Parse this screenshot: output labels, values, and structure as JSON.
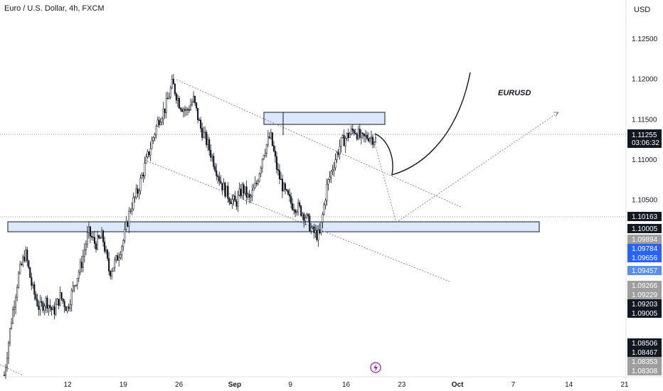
{
  "header": {
    "title": "Euro / U.S. Dollar, 4h, FXCM",
    "currency": "USD"
  },
  "annotation": {
    "label": "EURUSD"
  },
  "price_axis": {
    "ticks": [
      "1.12500",
      "1.12000",
      "1.11500",
      "1.11000",
      "1.10500"
    ]
  },
  "time_axis": {
    "ticks": [
      "12",
      "19",
      "26",
      "Sep",
      "9",
      "16",
      "23",
      "Oct",
      "7",
      "14",
      "21"
    ]
  },
  "current_price": {
    "value": "1.11255",
    "countdown": "03:06:32"
  },
  "price_tags": [
    {
      "value": "1.10163",
      "bg": "#131722",
      "fg": "#ffffff"
    },
    {
      "value": "1.10005",
      "bg": "#131722",
      "fg": "#ffffff"
    },
    {
      "value": "1.09894",
      "bg": "#9e9e9e",
      "fg": "#ffffff"
    },
    {
      "value": "1.09784",
      "bg": "#2962ff",
      "fg": "#ffffff"
    },
    {
      "value": "1.09656",
      "bg": "#2962ff",
      "fg": "#ffffff"
    },
    {
      "value": "1.09457",
      "bg": "#5b8def",
      "fg": "#ffffff"
    },
    {
      "value": "1.09266",
      "bg": "#9e9e9e",
      "fg": "#ffffff"
    },
    {
      "value": "1.09229",
      "bg": "#9e9e9e",
      "fg": "#ffffff"
    },
    {
      "value": "1.09203",
      "bg": "#131722",
      "fg": "#ffffff"
    },
    {
      "value": "1.09005",
      "bg": "#131722",
      "fg": "#ffffff"
    },
    {
      "value": "1.08506",
      "bg": "#131722",
      "fg": "#ffffff"
    },
    {
      "value": "1.08467",
      "bg": "#131722",
      "fg": "#ffffff"
    },
    {
      "value": "1.08353",
      "bg": "#9e9e9e",
      "fg": "#ffffff"
    },
    {
      "value": "1.08308",
      "bg": "#9e9e9e",
      "fg": "#ffffff"
    }
  ],
  "colors": {
    "candle": "#131722",
    "zone_fill": "#dbe8fb",
    "zone_border": "#131722",
    "trend": "#787b86",
    "logo": "#9c27b0"
  },
  "icons": {
    "logo": "lightning-icon"
  },
  "chart_data": {
    "type": "candlestick",
    "symbol": "Euro / U.S. Dollar",
    "interval": "4h",
    "ylim": [
      1.083,
      1.129
    ],
    "path": [
      [
        0,
        1.0832
      ],
      [
        1,
        1.09
      ],
      [
        2,
        1.0955
      ],
      [
        3,
        1.0985
      ],
      [
        4,
        1.094
      ],
      [
        5,
        1.0915
      ],
      [
        6,
        1.0925
      ],
      [
        7,
        1.091
      ],
      [
        8,
        1.093
      ],
      [
        9,
        1.0915
      ],
      [
        10,
        1.0945
      ],
      [
        11,
        1.097
      ],
      [
        12,
        1.101
      ],
      [
        13,
        1.0995
      ],
      [
        14,
        1.1005
      ],
      [
        15,
        1.096
      ],
      [
        16,
        1.0975
      ],
      [
        17,
        1.1
      ],
      [
        18,
        1.104
      ],
      [
        19,
        1.106
      ],
      [
        20,
        1.109
      ],
      [
        21,
        1.112
      ],
      [
        22,
        1.115
      ],
      [
        23,
        1.1165
      ],
      [
        24,
        1.1195
      ],
      [
        25,
        1.117
      ],
      [
        26,
        1.116
      ],
      [
        27,
        1.1175
      ],
      [
        28,
        1.114
      ],
      [
        29,
        1.112
      ],
      [
        30,
        1.1095
      ],
      [
        31,
        1.107
      ],
      [
        32,
        1.1055
      ],
      [
        33,
        1.1045
      ],
      [
        34,
        1.1065
      ],
      [
        35,
        1.105
      ],
      [
        36,
        1.107
      ],
      [
        37,
        1.111
      ],
      [
        38,
        1.113
      ],
      [
        39,
        1.1085
      ],
      [
        40,
        1.106
      ],
      [
        41,
        1.1045
      ],
      [
        42,
        1.104
      ],
      [
        43,
        1.103
      ],
      [
        44,
        1.101
      ],
      [
        45,
        1.1005
      ],
      [
        46,
        1.1065
      ],
      [
        47,
        1.1095
      ],
      [
        48,
        1.112
      ],
      [
        49,
        1.113
      ],
      [
        50,
        1.1138
      ],
      [
        51,
        1.1125
      ],
      [
        52,
        1.113
      ],
      [
        53,
        1.1125
      ]
    ]
  }
}
